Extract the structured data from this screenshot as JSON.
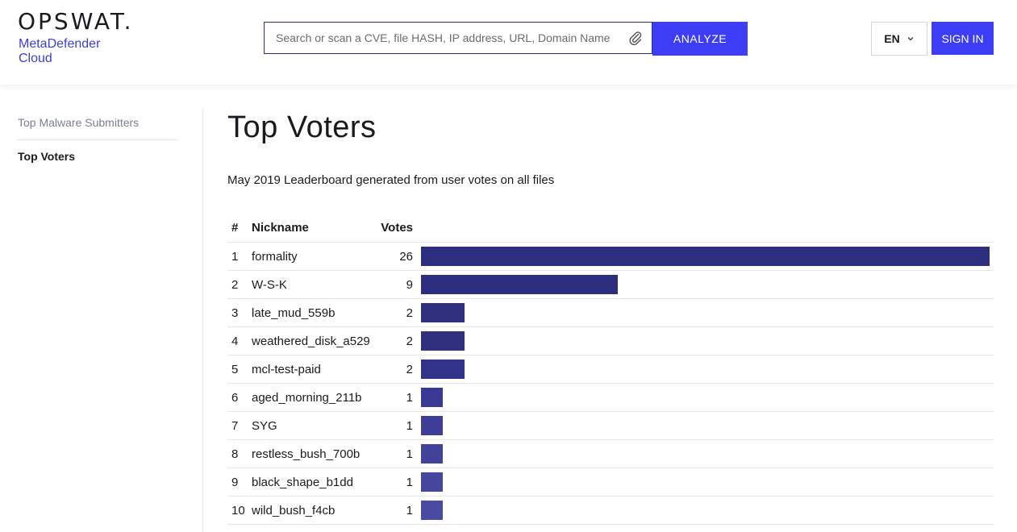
{
  "header": {
    "logo": "OPSWAT.",
    "product": "MetaDefender Cloud",
    "search_placeholder": "Search or scan a CVE, file HASH, IP address, URL, Domain Name",
    "analyze_label": "ANALYZE",
    "lang_label": "EN",
    "signin_label": "SIGN IN",
    "icons": {
      "attach": "paperclip-icon",
      "lang_chevron": "chevron-down-icon"
    }
  },
  "sidebar": {
    "items": [
      {
        "label": "Top Malware Submitters",
        "active": false
      },
      {
        "label": "Top Voters",
        "active": true
      }
    ]
  },
  "main": {
    "title": "Top Voters",
    "subtitle": "May 2019 Leaderboard generated from user votes on all files",
    "columns": {
      "rank": "#",
      "nickname": "Nickname",
      "votes": "Votes"
    },
    "rows": [
      {
        "rank": "1",
        "nickname": "formality",
        "votes": "26",
        "value": 26
      },
      {
        "rank": "2",
        "nickname": "W-S-K",
        "votes": "9",
        "value": 9
      },
      {
        "rank": "3",
        "nickname": "late_mud_559b",
        "votes": "2",
        "value": 2
      },
      {
        "rank": "4",
        "nickname": "weathered_disk_a529",
        "votes": "2",
        "value": 2
      },
      {
        "rank": "5",
        "nickname": "mcl-test-paid",
        "votes": "2",
        "value": 2
      },
      {
        "rank": "6",
        "nickname": "aged_morning_211b",
        "votes": "1",
        "value": 1
      },
      {
        "rank": "7",
        "nickname": "SYG",
        "votes": "1",
        "value": 1
      },
      {
        "rank": "8",
        "nickname": "restless_bush_700b",
        "votes": "1",
        "value": 1
      },
      {
        "rank": "9",
        "nickname": "black_shape_b1dd",
        "votes": "1",
        "value": 1
      },
      {
        "rank": "10",
        "nickname": "wild_bush_f4cb",
        "votes": "1",
        "value": 1
      }
    ],
    "bar_colors": [
      "#2e2e80",
      "#2e2e80",
      "#30307f",
      "#30307f",
      "#32328a",
      "#393995",
      "#3e3e97",
      "#42429a",
      "#46469e",
      "#4a4aa2"
    ]
  },
  "colors": {
    "accent": "#3d3df5",
    "brand_text": "#3d3dd6",
    "bar": "#2e2e80"
  }
}
